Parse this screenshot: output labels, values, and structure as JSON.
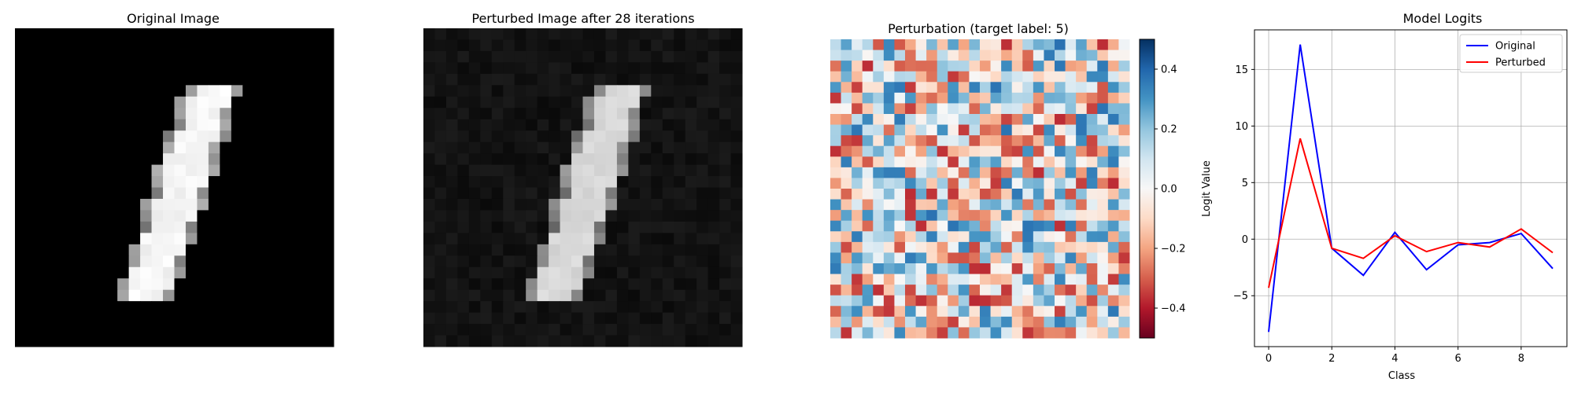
{
  "titles": {
    "original": "Original Image",
    "perturbed": "Perturbed Image after 28 iterations",
    "perturbation": "Perturbation (target label: 5)",
    "logits": "Model Logits"
  },
  "chart_data": [
    {
      "type": "heatmap",
      "title": "Original Image",
      "colormap": "gray",
      "grid_size": [
        28,
        28
      ],
      "axes_visible": false,
      "description_of_values": "MNIST digit '1', pixel intensity 0-1"
    },
    {
      "type": "heatmap",
      "title": "Perturbed Image after 28 iterations",
      "colormap": "gray",
      "grid_size": [
        28,
        28
      ],
      "axes_visible": false
    },
    {
      "type": "heatmap",
      "title": "Perturbation (target label: 5)",
      "colormap": "RdBu",
      "grid_size": [
        28,
        28
      ],
      "vlim": [
        -0.5,
        0.5
      ],
      "colorbar_ticks": [
        -0.4,
        -0.2,
        0.0,
        0.2,
        0.4
      ],
      "colorbar_tick_labels": [
        "−0.4",
        "−0.2",
        "0.0",
        "0.2",
        "0.4"
      ],
      "axes_visible": false
    },
    {
      "type": "line",
      "title": "Model Logits",
      "xlabel": "Class",
      "ylabel": "Logit Value",
      "x": [
        0,
        1,
        2,
        3,
        4,
        5,
        6,
        7,
        8,
        9
      ],
      "xlim": [
        -0.45,
        9.45
      ],
      "ylim": [
        -9.5,
        18.5
      ],
      "xticks": [
        0,
        2,
        4,
        6,
        8
      ],
      "yticks": [
        -5,
        0,
        5,
        10,
        15
      ],
      "ytick_labels": [
        "−5",
        "0",
        "5",
        "10",
        "15"
      ],
      "grid": true,
      "legend_position": "top-right",
      "series": [
        {
          "name": "Original",
          "color": "#0000ff",
          "values": [
            -8.2,
            17.2,
            -0.8,
            -3.2,
            0.6,
            -2.7,
            -0.5,
            -0.3,
            0.5,
            -2.6
          ]
        },
        {
          "name": "Perturbed",
          "color": "#ff0000",
          "values": [
            -4.3,
            8.9,
            -0.8,
            -1.7,
            0.3,
            -1.1,
            -0.3,
            -0.7,
            0.9,
            -1.2
          ]
        }
      ]
    }
  ]
}
